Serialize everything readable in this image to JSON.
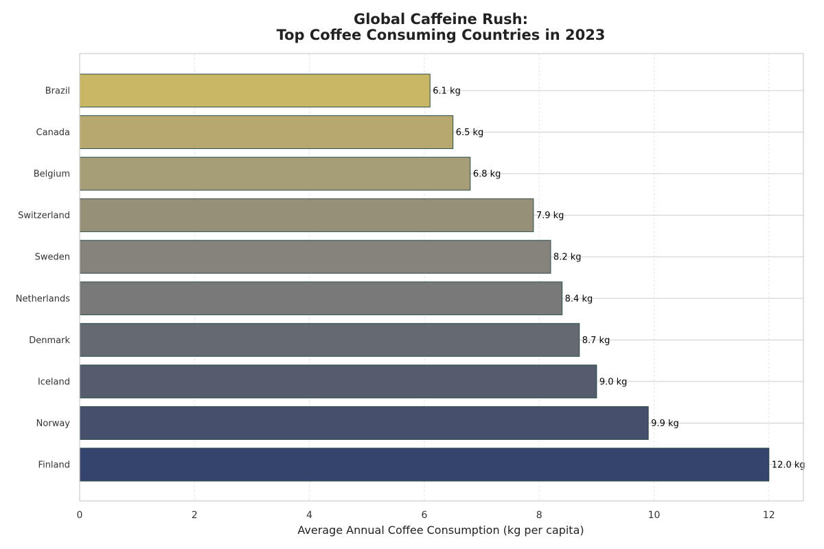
{
  "chart_data": {
    "type": "bar",
    "orientation": "horizontal",
    "title_line1": "Global Caffeine Rush:",
    "title_line2": "Top Coffee Consuming Countries in 2023",
    "xlabel": "Average Annual Coffee Consumption (kg per capita)",
    "ylabel": "",
    "xlim": [
      0,
      12.6
    ],
    "xticks": [
      0,
      2,
      4,
      6,
      8,
      10,
      12
    ],
    "value_unit": "kg",
    "grid": true,
    "legend": "none",
    "categories": [
      "Brazil",
      "Canada",
      "Belgium",
      "Switzerland",
      "Sweden",
      "Netherlands",
      "Denmark",
      "Iceland",
      "Norway",
      "Finland"
    ],
    "values": [
      6.1,
      6.5,
      6.8,
      7.9,
      8.2,
      8.4,
      8.7,
      9.0,
      9.9,
      12.0
    ],
    "value_labels": [
      "6.1 kg",
      "6.5 kg",
      "6.8 kg",
      "7.9 kg",
      "8.2 kg",
      "8.4 kg",
      "8.7 kg",
      "9.0 kg",
      "9.9 kg",
      "12.0 kg"
    ],
    "colors": [
      "#c9b765",
      "#b7a86f",
      "#a59e76",
      "#969078",
      "#85837b",
      "#797979",
      "#656a72",
      "#555c6d",
      "#464f6b",
      "#35446d"
    ],
    "edge_color": "#2a4a48"
  }
}
